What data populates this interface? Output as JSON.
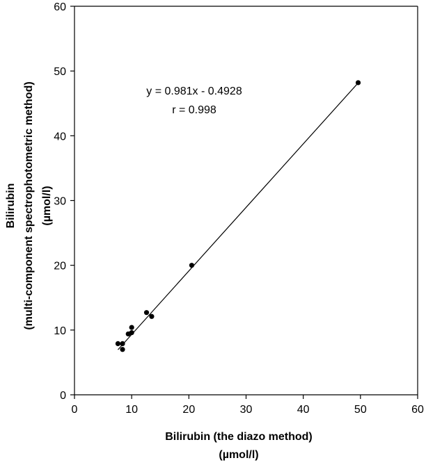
{
  "chart_data": {
    "type": "scatter",
    "title": "",
    "xlabel": [
      "Bilirubin (the diazo method)",
      "(µmol/l)"
    ],
    "ylabel": [
      "Bilirubin",
      "(multi-component spectrophotometric method)",
      "(µmol/l)"
    ],
    "xlim": [
      0,
      60
    ],
    "ylim": [
      0,
      60
    ],
    "xticks": [
      0,
      10,
      20,
      30,
      40,
      50,
      60
    ],
    "yticks": [
      0,
      10,
      20,
      30,
      40,
      50,
      60
    ],
    "grid": false,
    "legend": "none",
    "series": [
      {
        "points": [
          {
            "x": 7.6,
            "y": 7.9
          },
          {
            "x": 8.4,
            "y": 7.9
          },
          {
            "x": 8.4,
            "y": 7.0
          },
          {
            "x": 9.4,
            "y": 9.4
          },
          {
            "x": 10.0,
            "y": 10.4
          },
          {
            "x": 10.0,
            "y": 9.6
          },
          {
            "x": 12.6,
            "y": 12.7
          },
          {
            "x": 13.5,
            "y": 12.1
          },
          {
            "x": 20.5,
            "y": 20.0
          },
          {
            "x": 49.6,
            "y": 48.2
          }
        ]
      }
    ],
    "trendline": {
      "slope": 0.981,
      "intercept": -0.4928,
      "x_range": [
        7.6,
        49.6
      ]
    },
    "annotations": [
      "y = 0.981x - 0.4928",
      "r = 0.998"
    ],
    "colors": {
      "marker": "#000000",
      "line": "#000000",
      "axis": "#000000"
    }
  }
}
